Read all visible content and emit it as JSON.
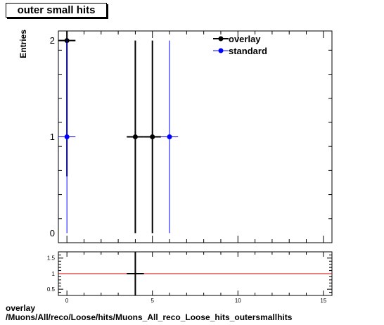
{
  "chart_data": [
    {
      "type": "scatter",
      "title": "outer small hits",
      "ylabel": "Entries",
      "xlabel": "",
      "xlim": [
        -0.5,
        15.5
      ],
      "ylim": [
        -0.1,
        2.1
      ],
      "x_ticks": [
        0,
        5,
        10,
        15
      ],
      "y_ticks": [
        0,
        1,
        2
      ],
      "legend_position": "top-right",
      "series": [
        {
          "name": "overlay",
          "color": "#000000",
          "points": [
            {
              "x": 0,
              "y": 2,
              "yerr": 1.41
            },
            {
              "x": 4,
              "y": 1,
              "yerr": 1
            },
            {
              "x": 5,
              "y": 1,
              "yerr": 1
            }
          ]
        },
        {
          "name": "standard",
          "color": "#0000ff",
          "points": [
            {
              "x": 0,
              "y": 1,
              "yerr": 1
            },
            {
              "x": 6,
              "y": 1,
              "yerr": 1
            }
          ]
        }
      ]
    },
    {
      "type": "scatter",
      "title": "",
      "xlim": [
        -0.5,
        15.5
      ],
      "ylim": [
        0.3,
        1.7
      ],
      "x_ticks": [
        0,
        5,
        10,
        15
      ],
      "y_ticks": [
        0.5,
        1,
        1.5
      ],
      "reference_line": {
        "y": 1,
        "color": "#cc0000"
      },
      "series": [
        {
          "name": "",
          "color": "#000000",
          "points": [
            {
              "x": 4,
              "y": 1,
              "yerr": 1
            }
          ]
        }
      ]
    }
  ],
  "footer": {
    "line1": "overlay",
    "line2": "/Muons/All/reco/Loose/hits/Muons_All_reco_Loose_hits_outersmallhits"
  }
}
